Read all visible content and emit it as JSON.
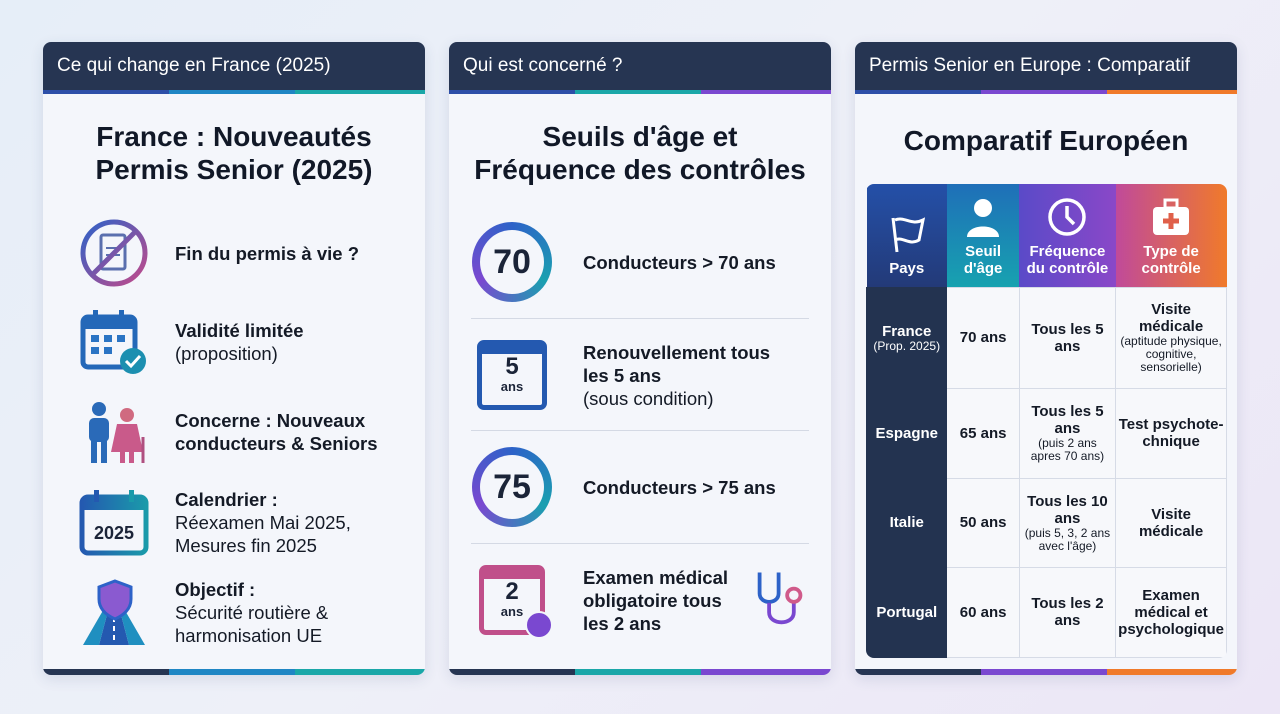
{
  "panels": [
    {
      "header": "Ce qui change en France (2025)",
      "title_lines": [
        "France : Nouveautés",
        "Permis Senior (2025)"
      ],
      "items": [
        {
          "icon": "no-license-icon",
          "bold": "Fin du permis à vie ?",
          "text": ""
        },
        {
          "icon": "calendar-check-icon",
          "bold": "Validité limitée",
          "text": "(proposition)"
        },
        {
          "icon": "seniors-icon",
          "bold": "Concerne : Nouveaux conducteurs & Seniors",
          "text": ""
        },
        {
          "icon": "calendar-2025-icon",
          "icon_text": "2025",
          "bold": "Calendrier :",
          "text": "Réexamen Mai 2025, Mesures fin 2025"
        },
        {
          "icon": "road-shield-icon",
          "bold": "Objectif :",
          "text": "Sécurité routière & harmonisation UE"
        }
      ]
    },
    {
      "header": "Qui est concerné ?",
      "title_lines": [
        "Seuils d'âge et",
        "Fréquence des contrôles"
      ],
      "rows": [
        {
          "icon": "age-70-icon",
          "badge": "70",
          "bold": "Conducteurs > 70 ans",
          "text": ""
        },
        {
          "icon": "calendar-5-icon",
          "badge": "5",
          "badge_unit": "ans",
          "bold": "Renouvellement tous les 5 ans",
          "text": "(sous condition)"
        },
        {
          "icon": "age-75-icon",
          "badge": "75",
          "bold": "Conducteurs > 75 ans",
          "text": ""
        },
        {
          "icon": "calendar-2-clock-icon",
          "badge": "2",
          "badge_unit": "ans",
          "bold": "Examen médical obligatoire tous les 2 ans",
          "text": ""
        }
      ]
    },
    {
      "header": "Permis Senior en Europe : Comparatif",
      "title": "Comparatif Européen",
      "table": {
        "headers": [
          {
            "label": "Pays",
            "icon": "flag-icon"
          },
          {
            "label": "Seuil d'âge",
            "icon": "person-icon"
          },
          {
            "label": "Fréquence du contrôle",
            "icon": "clock-icon"
          },
          {
            "label": "Type de contrôle",
            "icon": "medical-kit-icon"
          }
        ],
        "rows": [
          {
            "country": "France",
            "country_note": "(Prop. 2025)",
            "age": "70 ans",
            "freq": "Tous les 5 ans",
            "freq_note": "",
            "type": "Visite médicale",
            "type_note": "(aptitude physique, cognitive, sensorielle)"
          },
          {
            "country": "Espagne",
            "country_note": "",
            "age": "65 ans",
            "freq": "Tous les 5 ans",
            "freq_note": "(puis 2 ans apres 70 ans)",
            "type": "Test psychote-chnique",
            "type_note": ""
          },
          {
            "country": "Italie",
            "country_note": "",
            "age": "50 ans",
            "freq": "Tous les 10 ans",
            "freq_note": "(puis 5, 3, 2 ans avec l'âge)",
            "type": "Visite médicale",
            "type_note": ""
          },
          {
            "country": "Portugal",
            "country_note": "",
            "age": "60 ans",
            "freq": "Tous les 2 ans",
            "freq_note": "",
            "type": "Examen médical et psychologique",
            "type_note": ""
          }
        ]
      }
    }
  ],
  "colors": {
    "header": "#263552",
    "blue": "#2d62c8",
    "teal": "#1aa0b0",
    "purple": "#7a48d0",
    "orange": "#f07a2a",
    "navy_cell": "#233350"
  }
}
